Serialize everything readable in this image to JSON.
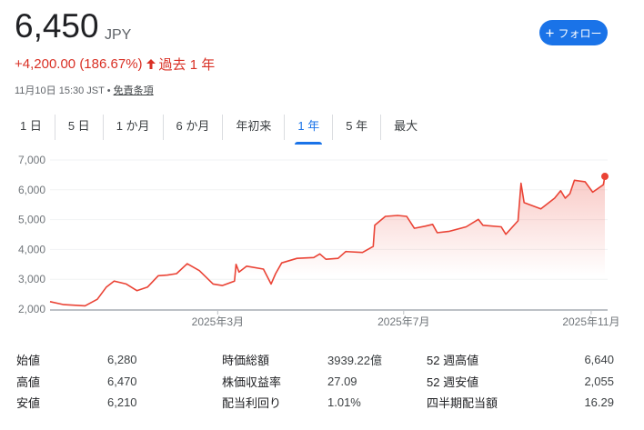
{
  "header": {
    "price": "6,450",
    "currency": "JPY",
    "follow_label": "フォロー",
    "follow_icon": "plus-icon",
    "change": "+4,200.00 (186.67%)",
    "change_icon": "arrow-up-icon",
    "period": "過去 1 年",
    "timestamp": "11月10日 15:30 JST •",
    "disclaimer": "免責条項"
  },
  "tabs": [
    {
      "label": "1 日"
    },
    {
      "label": "5 日"
    },
    {
      "label": "1 か月"
    },
    {
      "label": "6 か月"
    },
    {
      "label": "年初来"
    },
    {
      "label": "1 年",
      "active": true
    },
    {
      "label": "5 年"
    },
    {
      "label": "最大"
    }
  ],
  "colors": {
    "line": "#ea4335",
    "accent": "#1a73e8",
    "negative_red": "#d93025"
  },
  "chart_data": {
    "type": "area",
    "ylim": [
      2000,
      7000
    ],
    "grid": true,
    "yticks": [
      2000,
      3000,
      4000,
      5000,
      6000,
      7000
    ],
    "ytick_labels": [
      "2,000",
      "3,000",
      "4,000",
      "5,000",
      "6,000",
      "7,000"
    ],
    "xtick_dates": [
      "2025-03-01",
      "2025-07-01",
      "2025-11-01"
    ],
    "xtick_labels": [
      "2025年3月",
      "2025年7月",
      "2025年11月"
    ],
    "x_range": [
      "2024-11-11",
      "2025-11-10"
    ],
    "points": [
      [
        "2024-11-11",
        2250
      ],
      [
        "2024-11-20",
        2150
      ],
      [
        "2024-12-04",
        2110
      ],
      [
        "2024-12-12",
        2330
      ],
      [
        "2024-12-18",
        2740
      ],
      [
        "2024-12-23",
        2940
      ],
      [
        "2024-12-31",
        2840
      ],
      [
        "2025-01-07",
        2620
      ],
      [
        "2025-01-14",
        2740
      ],
      [
        "2025-01-21",
        3120
      ],
      [
        "2025-01-27",
        3140
      ],
      [
        "2025-02-02",
        3190
      ],
      [
        "2025-02-09",
        3520
      ],
      [
        "2025-02-17",
        3290
      ],
      [
        "2025-02-26",
        2840
      ],
      [
        "2025-03-04",
        2790
      ],
      [
        "2025-03-12",
        2940
      ],
      [
        "2025-03-13",
        3500
      ],
      [
        "2025-03-15",
        3240
      ],
      [
        "2025-03-20",
        3440
      ],
      [
        "2025-03-31",
        3340
      ],
      [
        "2025-04-05",
        2840
      ],
      [
        "2025-04-08",
        3190
      ],
      [
        "2025-04-12",
        3550
      ],
      [
        "2025-04-22",
        3700
      ],
      [
        "2025-05-03",
        3730
      ],
      [
        "2025-05-07",
        3850
      ],
      [
        "2025-05-11",
        3670
      ],
      [
        "2025-05-19",
        3700
      ],
      [
        "2025-05-24",
        3930
      ],
      [
        "2025-06-04",
        3900
      ],
      [
        "2025-06-11",
        4100
      ],
      [
        "2025-06-12",
        4810
      ],
      [
        "2025-06-19",
        5110
      ],
      [
        "2025-06-27",
        5140
      ],
      [
        "2025-07-03",
        5110
      ],
      [
        "2025-07-08",
        4710
      ],
      [
        "2025-07-15",
        4780
      ],
      [
        "2025-07-20",
        4840
      ],
      [
        "2025-07-23",
        4560
      ],
      [
        "2025-07-31",
        4610
      ],
      [
        "2025-08-11",
        4760
      ],
      [
        "2025-08-19",
        5010
      ],
      [
        "2025-08-22",
        4810
      ],
      [
        "2025-09-03",
        4760
      ],
      [
        "2025-09-06",
        4510
      ],
      [
        "2025-09-14",
        4960
      ],
      [
        "2025-09-16",
        6220
      ],
      [
        "2025-09-18",
        5570
      ],
      [
        "2025-09-29",
        5360
      ],
      [
        "2025-10-08",
        5720
      ],
      [
        "2025-10-12",
        5970
      ],
      [
        "2025-10-15",
        5720
      ],
      [
        "2025-10-18",
        5870
      ],
      [
        "2025-10-21",
        6320
      ],
      [
        "2025-10-28",
        6270
      ],
      [
        "2025-11-02",
        5920
      ],
      [
        "2025-11-09",
        6170
      ],
      [
        "2025-11-10",
        6450
      ]
    ]
  },
  "stats": [
    {
      "k1": "始値",
      "v1": "6,280",
      "k2": "時価総額",
      "v2": "3939.22億",
      "k3": "52 週高値",
      "v3": "6,640"
    },
    {
      "k1": "高値",
      "v1": "6,470",
      "k2": "株価収益率",
      "v2": "27.09",
      "k3": "52 週安値",
      "v3": "2,055"
    },
    {
      "k1": "安値",
      "v1": "6,210",
      "k2": "配当利回り",
      "v2": "1.01%",
      "k3": "四半期配当額",
      "v3": "16.29"
    }
  ]
}
